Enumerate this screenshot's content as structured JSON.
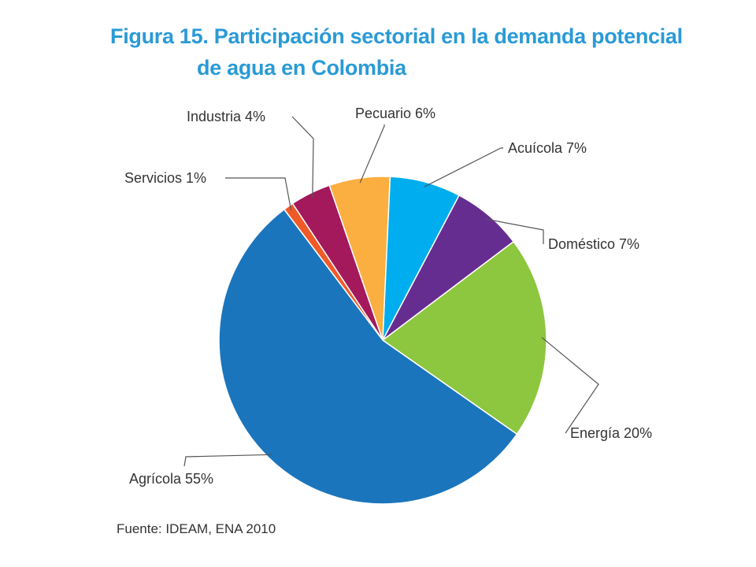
{
  "title": {
    "line1": "Figura 15. Participación sectorial en la demanda potencial",
    "line2": "de agua en Colombia"
  },
  "source": "Fuente: IDEAM, ENA 2010",
  "chart_data": {
    "type": "pie",
    "title": "Figura 15. Participación sectorial en la demanda potencial de agua en Colombia",
    "unit": "%",
    "slices": [
      {
        "label": "Servicios 1%",
        "value": 1,
        "color": "#f05a28"
      },
      {
        "label": "Industria 4%",
        "value": 4,
        "color": "#a3195b"
      },
      {
        "label": "Pecuario 6%",
        "value": 6,
        "color": "#fbaf41"
      },
      {
        "label": "Acuícola 7%",
        "value": 7,
        "color": "#00adee"
      },
      {
        "label": "Doméstico 7%",
        "value": 7,
        "color": "#662d91"
      },
      {
        "label": "Energía 20%",
        "value": 20,
        "color": "#8dc63f"
      },
      {
        "label": "Agrícola 55%",
        "value": 55,
        "color": "#1b75bc"
      }
    ]
  }
}
